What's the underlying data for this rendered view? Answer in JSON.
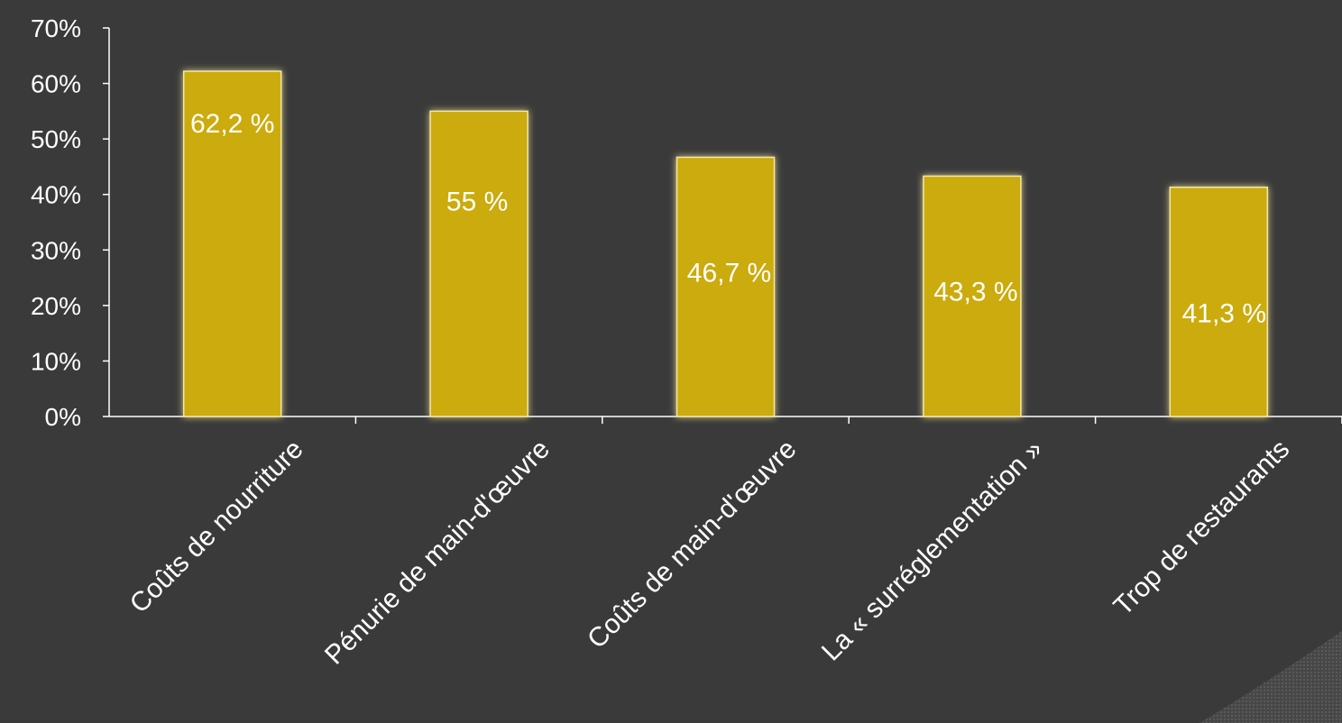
{
  "chart_data": {
    "type": "bar",
    "categories": [
      "Coûts de nourriture",
      "Pénurie de main-d'œuvre",
      "Coûts de main-d'œuvre",
      "La « surréglementation »",
      "Trop de restaurants"
    ],
    "values": [
      62.2,
      55,
      46.7,
      43.3,
      41.3
    ],
    "data_labels": [
      "62,2 %",
      "55 %",
      "46,7 %",
      "43,3 %",
      "41,3 %"
    ],
    "y_ticks": [
      "0%",
      "10%",
      "20%",
      "30%",
      "40%",
      "50%",
      "60%",
      "70%"
    ],
    "ylim": [
      0,
      70
    ],
    "title": "",
    "xlabel": "",
    "ylabel": "",
    "grid": false,
    "legend": "none",
    "bar_color": "#cbab0b",
    "bar_glow_color": "#e8d890",
    "background_color": "#3a3a3a",
    "axis_color": "#ffffff",
    "text_color": "#ffffff"
  }
}
